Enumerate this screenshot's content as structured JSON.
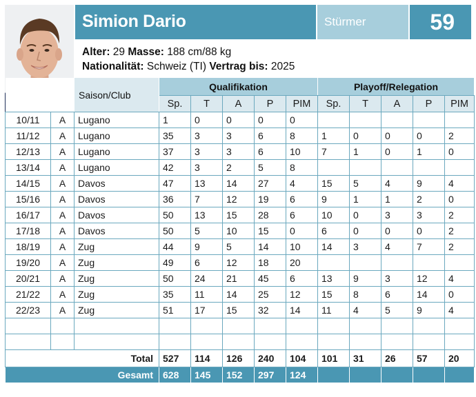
{
  "player": {
    "name": "Simion Dario",
    "position": "Stürmer",
    "number": "59"
  },
  "info": {
    "age_label": "Alter:",
    "age_value": "29",
    "mass_label": "Masse:",
    "mass_value": "188 cm/88 kg",
    "nation_label": "Nationalität:",
    "nation_value": "Schweiz (TI)",
    "contract_label": "Vertrag bis:",
    "contract_value": "2025"
  },
  "table": {
    "club_header": "Saison/Club",
    "qual_header": "Qualifikation",
    "playoff_header": "Playoff/Relegation",
    "col_headers": [
      "Sp.",
      "T",
      "A",
      "P",
      "PIM"
    ],
    "rows": [
      {
        "season": "10/11",
        "league": "A",
        "club": "Lugano",
        "q": [
          "1",
          "0",
          "0",
          "0",
          "0"
        ],
        "p": [
          "",
          "",
          "",
          "",
          ""
        ]
      },
      {
        "season": "11/12",
        "league": "A",
        "club": "Lugano",
        "q": [
          "35",
          "3",
          "3",
          "6",
          "8"
        ],
        "p": [
          "1",
          "0",
          "0",
          "0",
          "2"
        ]
      },
      {
        "season": "12/13",
        "league": "A",
        "club": "Lugano",
        "q": [
          "37",
          "3",
          "3",
          "6",
          "10"
        ],
        "p": [
          "7",
          "1",
          "0",
          "1",
          "0"
        ]
      },
      {
        "season": "13/14",
        "league": "A",
        "club": "Lugano",
        "q": [
          "42",
          "3",
          "2",
          "5",
          "8"
        ],
        "p": [
          "",
          "",
          "",
          "",
          ""
        ]
      },
      {
        "season": "14/15",
        "league": "A",
        "club": "Davos",
        "q": [
          "47",
          "13",
          "14",
          "27",
          "4"
        ],
        "p": [
          "15",
          "5",
          "4",
          "9",
          "4"
        ]
      },
      {
        "season": "15/16",
        "league": "A",
        "club": "Davos",
        "q": [
          "36",
          "7",
          "12",
          "19",
          "6"
        ],
        "p": [
          "9",
          "1",
          "1",
          "2",
          "0"
        ]
      },
      {
        "season": "16/17",
        "league": "A",
        "club": "Davos",
        "q": [
          "50",
          "13",
          "15",
          "28",
          "6"
        ],
        "p": [
          "10",
          "0",
          "3",
          "3",
          "2"
        ]
      },
      {
        "season": "17/18",
        "league": "A",
        "club": "Davos",
        "q": [
          "50",
          "5",
          "10",
          "15",
          "0"
        ],
        "p": [
          "6",
          "0",
          "0",
          "0",
          "2"
        ]
      },
      {
        "season": "18/19",
        "league": "A",
        "club": "Zug",
        "q": [
          "44",
          "9",
          "5",
          "14",
          "10"
        ],
        "p": [
          "14",
          "3",
          "4",
          "7",
          "2"
        ]
      },
      {
        "season": "19/20",
        "league": "A",
        "club": "Zug",
        "q": [
          "49",
          "6",
          "12",
          "18",
          "20"
        ],
        "p": [
          "",
          "",
          "",
          "",
          ""
        ]
      },
      {
        "season": "20/21",
        "league": "A",
        "club": "Zug",
        "q": [
          "50",
          "24",
          "21",
          "45",
          "6"
        ],
        "p": [
          "13",
          "9",
          "3",
          "12",
          "4"
        ]
      },
      {
        "season": "21/22",
        "league": "A",
        "club": "Zug",
        "q": [
          "35",
          "11",
          "14",
          "25",
          "12"
        ],
        "p": [
          "15",
          "8",
          "6",
          "14",
          "0"
        ]
      },
      {
        "season": "22/23",
        "league": "A",
        "club": "Zug",
        "q": [
          "51",
          "17",
          "15",
          "32",
          "14"
        ],
        "p": [
          "11",
          "4",
          "5",
          "9",
          "4"
        ]
      },
      {
        "season": "",
        "league": "",
        "club": "",
        "q": [
          "",
          "",
          "",
          "",
          ""
        ],
        "p": [
          "",
          "",
          "",
          "",
          ""
        ]
      },
      {
        "season": "",
        "league": "",
        "club": "",
        "q": [
          "",
          "",
          "",
          "",
          ""
        ],
        "p": [
          "",
          "",
          "",
          "",
          ""
        ]
      }
    ],
    "total": {
      "label": "Total",
      "q": [
        "527",
        "114",
        "126",
        "240",
        "104"
      ],
      "p": [
        "101",
        "31",
        "26",
        "57",
        "20"
      ]
    },
    "gesamt": {
      "label": "Gesamt",
      "q": [
        "628",
        "145",
        "152",
        "297",
        "124"
      ]
    }
  },
  "colors": {
    "accent": "#4a97b3",
    "accent_light": "#a7cedc",
    "header_bg": "#dbe9ef",
    "grid": "#6aa8be"
  }
}
